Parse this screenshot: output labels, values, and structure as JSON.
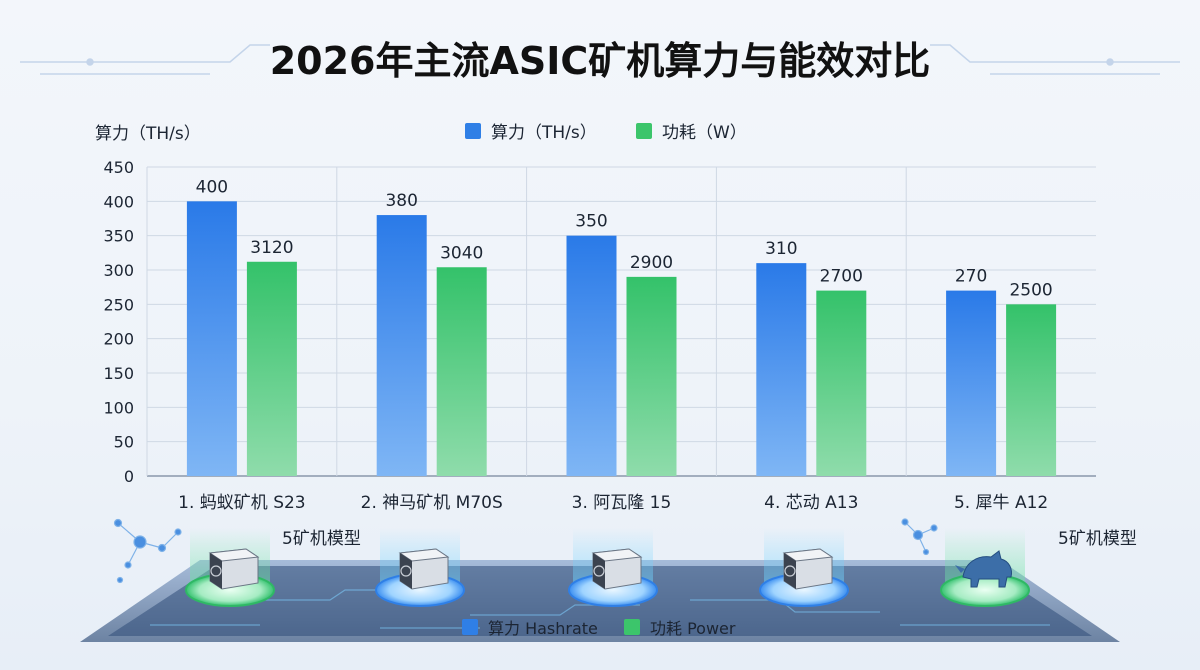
{
  "title": "2026年主流ASIC矿机算力与能效对比",
  "model_note": "5矿机模型",
  "bottom_legend": [
    {
      "label": "算力 Hashrate",
      "color": "#2f7fe6"
    },
    {
      "label": "功耗 Power",
      "color": "#3cc56b"
    }
  ],
  "colors": {
    "hashrate": "#2f7fe6",
    "power": "#3cc56b"
  },
  "chart_data": {
    "type": "bar",
    "ylabel": "算力（TH/s）",
    "ylim": [
      0,
      450
    ],
    "yticks": [
      0,
      50,
      100,
      150,
      200,
      250,
      300,
      350,
      400,
      450
    ],
    "categories": [
      "1. 蚂蚁矿机 S23",
      "2. 神马矿机 M70S",
      "3. 阿瓦隆 15",
      "4. 芯动 A13",
      "5. 犀牛 A12"
    ],
    "series": [
      {
        "name": "算力（TH/s）",
        "values": [
          400,
          380,
          350,
          310,
          270
        ],
        "labels": [
          "400",
          "380",
          "350",
          "310",
          "270"
        ]
      },
      {
        "name": "功耗（W）",
        "values": [
          3120,
          3040,
          2900,
          2700,
          2500
        ],
        "labels": [
          "3120",
          "3040",
          "2900",
          "2700",
          "2500"
        ],
        "axis_scale": 10
      }
    ],
    "legend_position": "top-center",
    "grid": true
  },
  "icons": [
    "miner-icon",
    "miner-icon",
    "miner-icon",
    "miner-icon",
    "rhino-icon"
  ]
}
